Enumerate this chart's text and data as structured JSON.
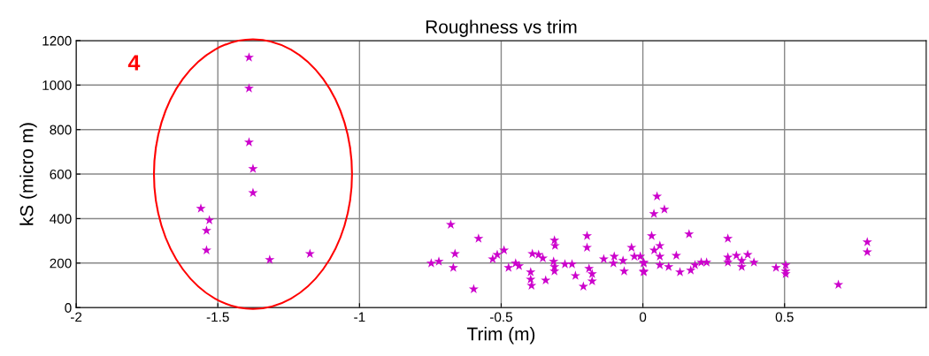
{
  "chart_data": {
    "type": "scatter",
    "title": "Roughness vs trim",
    "xlabel": "Trim (m)",
    "ylabel": "kS (micro m)",
    "annotations": [
      "4"
    ],
    "x": [
      -1.39,
      -1.39,
      -1.39,
      -1.376,
      -1.376,
      -1.56,
      -1.53,
      -1.54,
      -1.54,
      -1.317,
      -1.175,
      -0.678,
      -0.58,
      -0.663,
      -0.747,
      -0.72,
      -0.669,
      -0.597,
      -0.53,
      -0.514,
      -0.49,
      -0.474,
      -0.449,
      -0.437,
      -0.396,
      -0.396,
      -0.393,
      -0.39,
      -0.368,
      -0.353,
      -0.343,
      -0.312,
      -0.31,
      -0.315,
      -0.312,
      -0.312,
      -0.275,
      -0.25,
      -0.238,
      -0.21,
      -0.197,
      -0.197,
      -0.19,
      -0.179,
      -0.179,
      -0.138,
      -0.101,
      -0.104,
      -0.07,
      -0.066,
      -0.04,
      -0.03,
      -0.009,
      0.003,
      0.003,
      0.05,
      0.039,
      0.076,
      0.031,
      0.06,
      0.04,
      0.06,
      0.003,
      0.003,
      0.06,
      0.091,
      0.118,
      0.131,
      0.163,
      0.169,
      0.184,
      0.206,
      0.225,
      0.3,
      0.3,
      0.3,
      0.33,
      0.349,
      0.349,
      0.37,
      0.392,
      0.47,
      0.504,
      0.504,
      0.504,
      0.69,
      0.792,
      0.792
    ],
    "values": [
      1124,
      985,
      743,
      624,
      516,
      445,
      393,
      346,
      258,
      215,
      242,
      373,
      310,
      242,
      199,
      207,
      179,
      83,
      218,
      238,
      258,
      179,
      199,
      187,
      159,
      127,
      99,
      242,
      238,
      222,
      123,
      302,
      278,
      207,
      183,
      163,
      195,
      195,
      143,
      95,
      322,
      270,
      175,
      151,
      119,
      218,
      230,
      199,
      211,
      163,
      270,
      230,
      230,
      199,
      159,
      500,
      421,
      441,
      322,
      278,
      258,
      230,
      203,
      163,
      191,
      183,
      234,
      159,
      330,
      167,
      191,
      203,
      203,
      310,
      226,
      203,
      234,
      211,
      183,
      238,
      203,
      179,
      191,
      163,
      151,
      103,
      294,
      250
    ],
    "color": "#cc00cc",
    "marker": "star",
    "xlim": [
      -2,
      1
    ],
    "xticks": [
      -2,
      -1.5,
      -1,
      -0.5,
      0,
      0.5
    ],
    "ylim": [
      0,
      1200
    ],
    "yticks": [
      0,
      200,
      400,
      600,
      800,
      1000,
      1200
    ],
    "grid": true
  }
}
